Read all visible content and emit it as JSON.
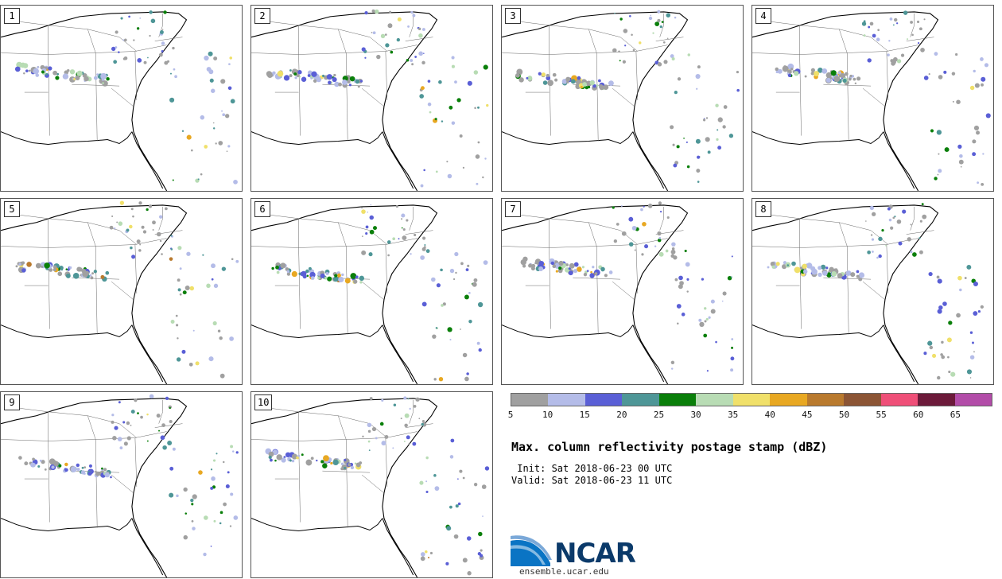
{
  "panels": [
    {
      "label": "1"
    },
    {
      "label": "2"
    },
    {
      "label": "3"
    },
    {
      "label": "4"
    },
    {
      "label": "5"
    },
    {
      "label": "6"
    },
    {
      "label": "7"
    },
    {
      "label": "8"
    },
    {
      "label": "9"
    },
    {
      "label": "10"
    }
  ],
  "colorbar": {
    "colors": [
      "#a0a0a0",
      "#b4bce8",
      "#5a5fd6",
      "#4e9697",
      "#0a7f0a",
      "#b8dcb4",
      "#f0e06a",
      "#e8a822",
      "#b97a2e",
      "#8c5535",
      "#ef4f78",
      "#6c1a3a",
      "#b24ca8"
    ],
    "labels": [
      "5",
      "10",
      "15",
      "20",
      "25",
      "30",
      "35",
      "40",
      "45",
      "50",
      "55",
      "60",
      "65"
    ]
  },
  "title": "Max. column reflectivity postage stamp (dBZ)",
  "init": " Init: Sat 2018-06-23 00 UTC",
  "valid": "Valid: Sat 2018-06-23 11 UTC",
  "logo": {
    "name": "NCAR",
    "url": "ensemble.ucar.edu"
  }
}
